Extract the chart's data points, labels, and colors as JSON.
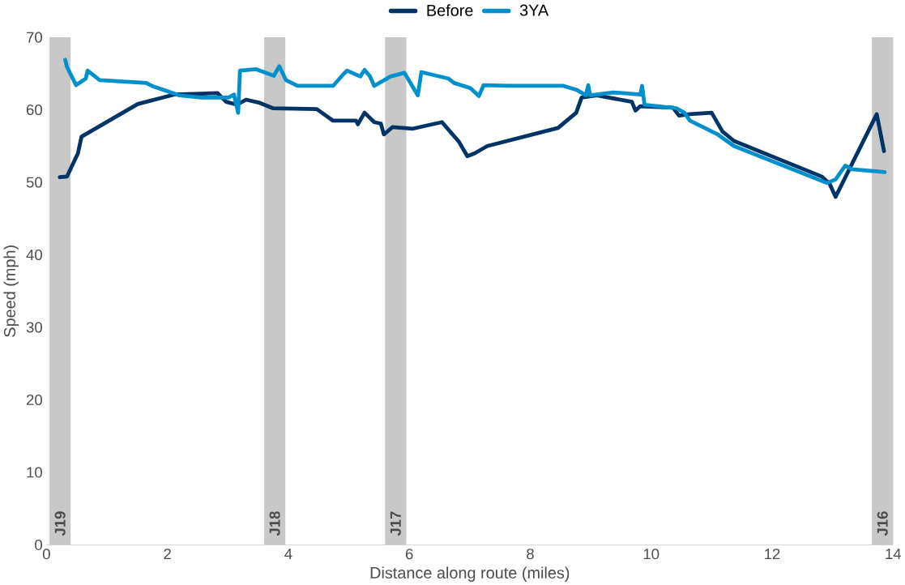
{
  "chart_data": {
    "type": "line",
    "xlabel": "Distance along route (miles)",
    "ylabel": "Speed (mph)",
    "xlim": [
      0,
      14
    ],
    "ylim": [
      0,
      70
    ],
    "xticks": [
      0,
      2,
      4,
      6,
      8,
      10,
      12,
      14
    ],
    "yticks": [
      0,
      10,
      20,
      30,
      40,
      50,
      60,
      70
    ],
    "grid": false,
    "legend": "top",
    "marker": "none",
    "line_style": "solid",
    "bands": [
      {
        "axis": "x",
        "from": 0.05,
        "to": 0.4,
        "label": "J19",
        "color": "#c8c8c8"
      },
      {
        "axis": "x",
        "from": 3.6,
        "to": 3.95,
        "label": "J18",
        "color": "#c8c8c8"
      },
      {
        "axis": "x",
        "from": 5.6,
        "to": 5.95,
        "label": "J17",
        "color": "#c8c8c8"
      },
      {
        "axis": "x",
        "from": 13.65,
        "to": 14.0,
        "label": "J16",
        "color": "#c8c8c8"
      }
    ],
    "series": [
      {
        "name": "Before",
        "color": "#003366",
        "x": [
          0.22,
          0.34,
          0.52,
          0.58,
          1.51,
          2.11,
          2.83,
          2.97,
          3.15,
          3.3,
          3.51,
          3.75,
          4.47,
          4.74,
          5.12,
          5.15,
          5.26,
          5.42,
          5.53,
          5.58,
          5.72,
          6.06,
          6.54,
          6.82,
          6.96,
          7.08,
          7.29,
          8.46,
          8.76,
          8.85,
          9.1,
          9.68,
          9.74,
          9.82,
          10.36,
          10.46,
          10.64,
          11.0,
          11.18,
          11.37,
          12.82,
          12.95,
          13.05,
          13.73,
          13.85
        ],
        "values": [
          50.7,
          50.8,
          54.0,
          56.3,
          60.8,
          62.1,
          62.3,
          61.1,
          60.7,
          61.4,
          61.0,
          60.2,
          60.1,
          58.5,
          58.5,
          58.0,
          59.6,
          58.3,
          58.1,
          56.6,
          57.6,
          57.4,
          58.3,
          55.6,
          53.6,
          54.0,
          55.0,
          57.5,
          59.6,
          61.7,
          62.0,
          61.1,
          59.9,
          60.5,
          60.3,
          59.2,
          59.4,
          59.6,
          57.0,
          55.7,
          50.8,
          49.8,
          48.0,
          59.4,
          54.3
        ]
      },
      {
        "name": "3YA",
        "color": "#0090cc",
        "x": [
          0.31,
          0.34,
          0.49,
          0.65,
          0.68,
          0.88,
          1.65,
          1.74,
          2.19,
          2.56,
          3.01,
          3.1,
          3.17,
          3.2,
          3.47,
          3.76,
          3.85,
          3.96,
          4.15,
          4.74,
          4.92,
          4.97,
          5.19,
          5.26,
          5.35,
          5.42,
          5.69,
          5.92,
          6.14,
          6.2,
          6.65,
          6.74,
          7.01,
          7.15,
          7.23,
          7.64,
          8.55,
          8.78,
          8.92,
          8.96,
          8.99,
          9.37,
          9.82,
          9.85,
          9.89,
          10.42,
          10.55,
          10.64,
          11.1,
          11.37,
          12.91,
          13.05,
          13.21,
          13.32,
          13.86
        ],
        "values": [
          66.9,
          65.9,
          63.4,
          64.3,
          65.4,
          64.1,
          63.7,
          63.3,
          62.0,
          61.7,
          61.7,
          62.1,
          59.6,
          65.4,
          65.6,
          64.7,
          66.0,
          64.1,
          63.3,
          63.3,
          65.0,
          65.4,
          64.6,
          65.5,
          64.6,
          63.3,
          64.6,
          65.1,
          62.0,
          65.2,
          64.3,
          63.7,
          63.0,
          61.9,
          63.4,
          63.3,
          63.3,
          62.7,
          62.0,
          63.4,
          62.0,
          62.4,
          62.1,
          63.3,
          60.7,
          60.2,
          59.6,
          58.5,
          56.6,
          55.0,
          49.9,
          50.4,
          52.3,
          51.8,
          51.4
        ]
      }
    ]
  }
}
